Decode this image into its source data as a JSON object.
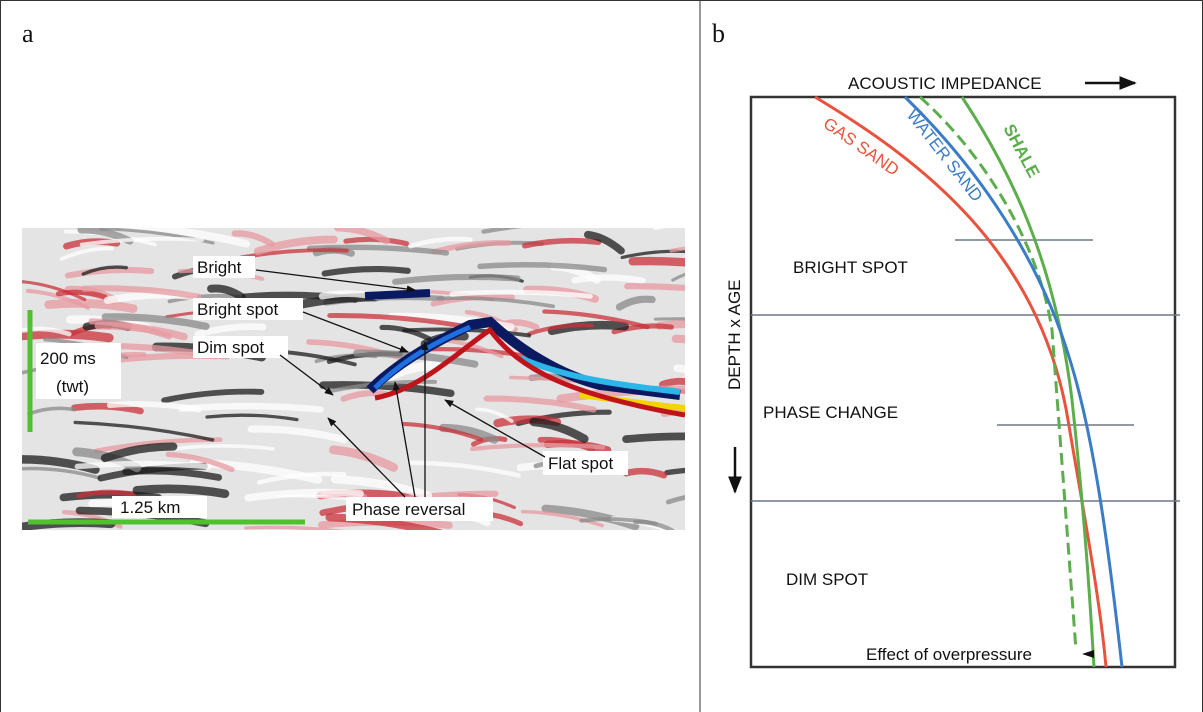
{
  "panel_a": {
    "label": "a",
    "labels": [
      "Bright",
      "Bright spot",
      "Dim spot",
      "Flat spot",
      "Phase reversal"
    ],
    "time_scale": [
      "200 ms",
      "(twt)"
    ],
    "distance_scale": "1.25 km"
  },
  "panel_b": {
    "label": "b",
    "x_axis": "ACOUSTIC IMPEDANCE",
    "y_axis": "DEPTH x AGE",
    "curves": [
      "GAS SAND",
      "WATER SAND",
      "SHALE"
    ],
    "zones": [
      "BRIGHT SPOT",
      "PHASE CHANGE",
      "DIM SPOT"
    ],
    "note": "Effect of overpressure"
  }
}
